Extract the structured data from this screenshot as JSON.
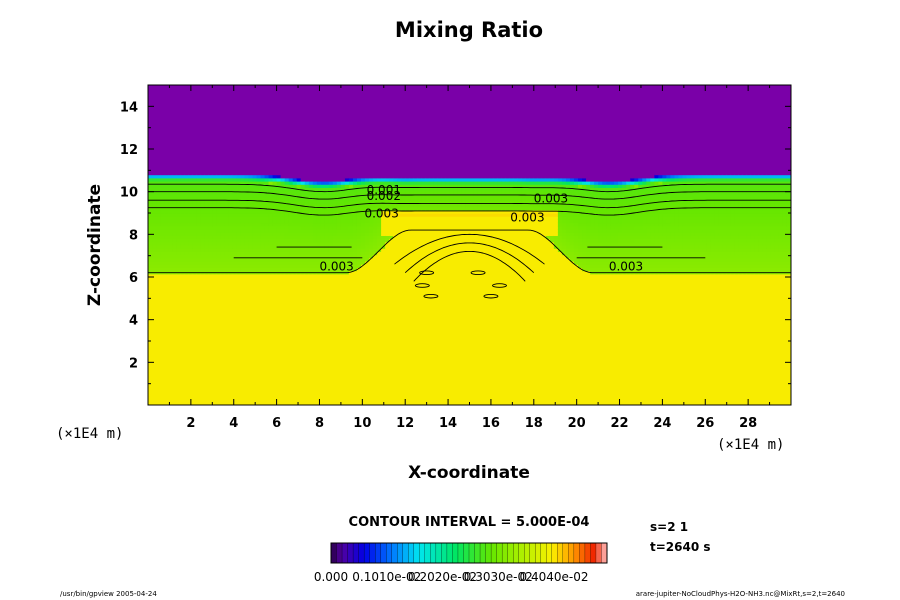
{
  "chart_data": {
    "type": "contour",
    "title": "Mixing Ratio",
    "xlabel": "X-coordinate",
    "ylabel": "Z-coordinate",
    "x_unit_label": "(×1E4 m)",
    "y_unit_label": "(×1E4 m)",
    "xlim": [
      0,
      30
    ],
    "ylim": [
      0,
      15
    ],
    "x_ticks": [
      2,
      4,
      6,
      8,
      10,
      12,
      14,
      16,
      18,
      20,
      22,
      24,
      26,
      28
    ],
    "y_ticks": [
      2,
      4,
      6,
      8,
      10,
      12,
      14
    ],
    "contour_interval_label": "CONTOUR INTERVAL = 5.000E-04",
    "contour_labels": [
      {
        "text": "0.001",
        "x": 10.2,
        "z": 9.9
      },
      {
        "text": "0.002",
        "x": 10.2,
        "z": 9.6
      },
      {
        "text": "0.003",
        "x": 10.1,
        "z": 8.8
      },
      {
        "text": "0.003",
        "x": 16.9,
        "z": 8.6
      },
      {
        "text": "0.003",
        "x": 18.0,
        "z": 9.5
      },
      {
        "text": "0.003",
        "x": 8.0,
        "z": 6.3
      },
      {
        "text": "0.003",
        "x": 21.5,
        "z": 6.3
      }
    ],
    "field": {
      "background_value": 0.0046,
      "upper_value": 0.0,
      "moist_layer_value": 0.0032,
      "core_value": 0.0043,
      "top_transition_z_edge": 10.5,
      "top_transition_z_center": 10.0,
      "moist_base_z_edge": 6.2,
      "moist_base_z_center": 8.2,
      "disturbance_x_range": [
        10,
        20
      ]
    },
    "colorbar": {
      "vmin": 0.0,
      "vmax": 0.005,
      "tick_labels": [
        "0.000",
        "0.1010e-02",
        "0.2020e-02",
        "0.3030e-02",
        "0.4040e-02"
      ]
    }
  },
  "info": {
    "step": "s=2 1",
    "time": "t=2640 s"
  },
  "footer": {
    "left": "/usr/bin/gpview 2005-04-24",
    "right": "arare-jupiter-NoCloudPhys-H2O-NH3.nc@MixRt,s=2,t=2640"
  },
  "colors": {
    "background": "#ffffff",
    "axis": "#000000",
    "contour": "#000000"
  }
}
